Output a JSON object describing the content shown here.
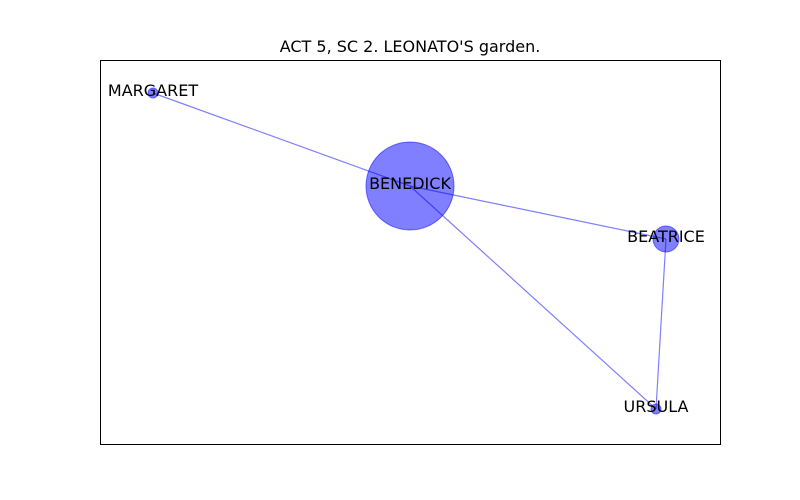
{
  "figure": {
    "title": "ACT 5, SC 2. LEONATO'S garden."
  },
  "colors": {
    "node_fill": "#0000ff",
    "edge_stroke": "#0000ff",
    "frame_stroke": "#000000",
    "background": "#ffffff"
  },
  "nodes": [
    {
      "id": "BENEDICK",
      "label": "BENEDICK"
    },
    {
      "id": "MARGARET",
      "label": "MARGARET"
    },
    {
      "id": "BEATRICE",
      "label": "BEATRICE"
    },
    {
      "id": "URSULA",
      "label": "URSULA"
    }
  ],
  "edges": [
    {
      "source": "BENEDICK",
      "target": "MARGARET"
    },
    {
      "source": "BENEDICK",
      "target": "BEATRICE"
    },
    {
      "source": "BENEDICK",
      "target": "URSULA"
    },
    {
      "source": "BEATRICE",
      "target": "URSULA"
    }
  ]
}
